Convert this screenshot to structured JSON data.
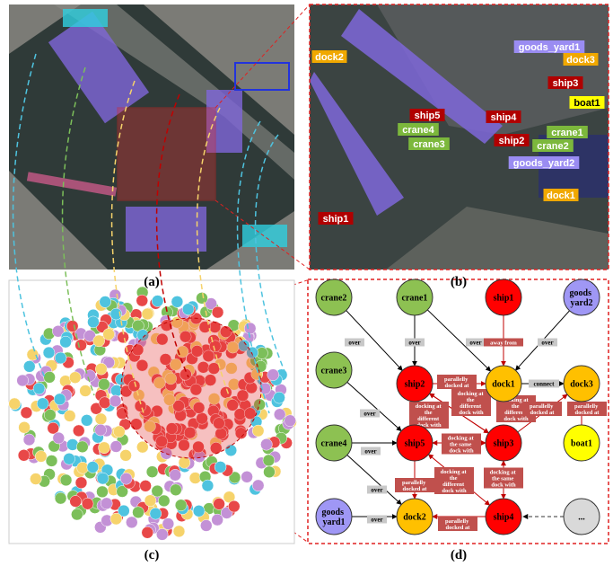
{
  "panels": {
    "a": "(a)",
    "b": "(b)",
    "c": "(c)",
    "d": "(d)"
  },
  "scene_labels": [
    "dock2",
    "goods_yard1",
    "dock3",
    "ship3",
    "boat1",
    "ship5",
    "ship4",
    "crane4",
    "crane3",
    "ship2",
    "crane1",
    "crane2",
    "goods_yard2",
    "dock1",
    "ship1"
  ],
  "graph": {
    "nodes": [
      "crane2",
      "crane1",
      "ship1",
      "goods yard2",
      "crane3",
      "ship2",
      "dock1",
      "dock3",
      "crane4",
      "ship5",
      "ship3",
      "boat1",
      "goods yard1",
      "dock2",
      "ship4",
      "..."
    ],
    "edge_labels": [
      "over",
      "over",
      "over",
      "away from",
      "over",
      "parallelly docked at",
      "connect",
      "over",
      "docking at the different dock with",
      "docking at the different dock with",
      "docking at the different dock with",
      "parallelly docked at",
      "parallelly docked at",
      "over",
      "docking at the same dock with",
      "docking at the same dock with",
      "parallelly docked at",
      "over",
      "over",
      "parallelly docked at",
      "docking at the different dock with"
    ]
  }
}
